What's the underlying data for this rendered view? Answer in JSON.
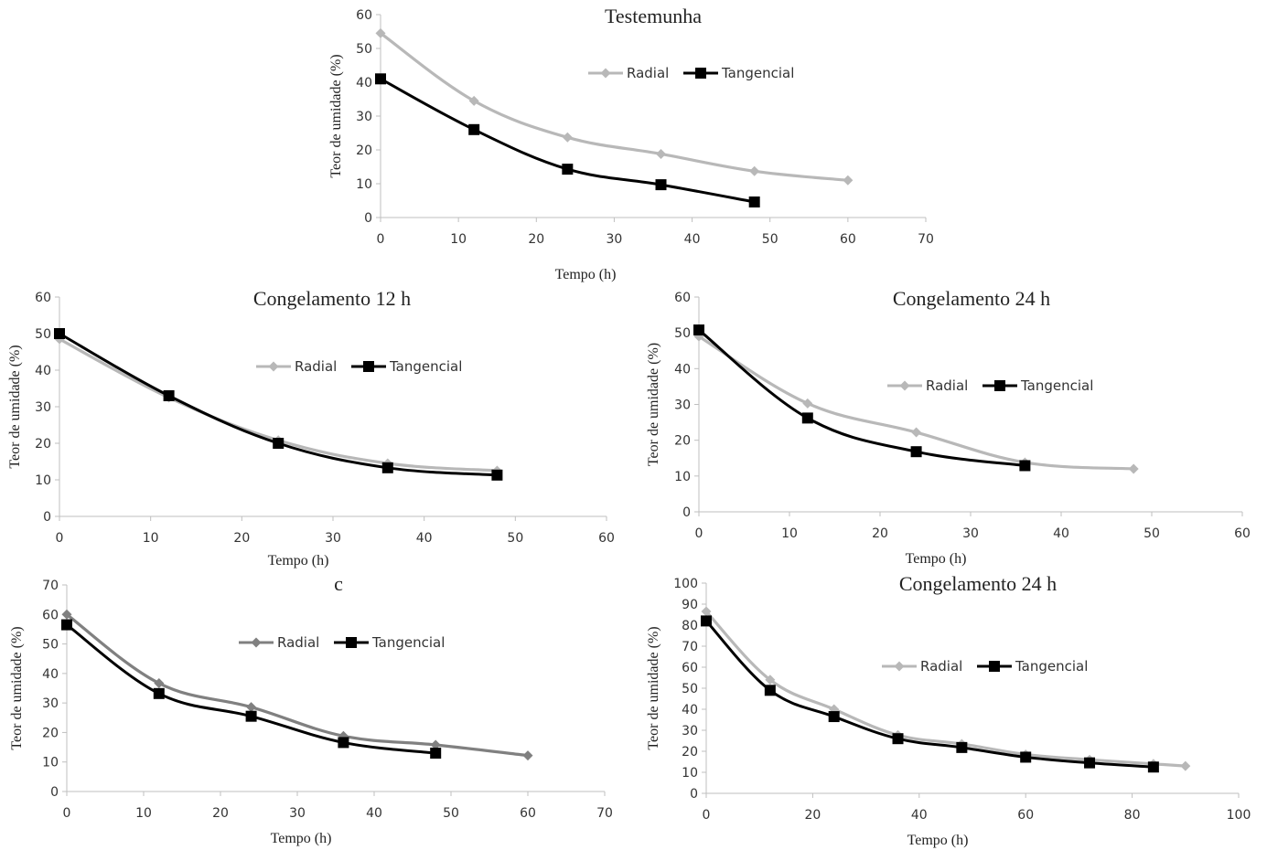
{
  "charts": [
    {
      "type": "line",
      "title": "Testemunha",
      "xlabel": "Tempo (h)",
      "ylabel": "Teor de umidade (%)",
      "xlim": [
        0,
        70
      ],
      "ylim": [
        0,
        60
      ],
      "xticks": [
        0,
        10,
        20,
        30,
        40,
        50,
        60,
        70
      ],
      "yticks": [
        0,
        10,
        20,
        30,
        40,
        50,
        60
      ],
      "legend": "top-right",
      "series": [
        {
          "name": "Radial",
          "color": "#b8b8b8",
          "marker": "diamond",
          "x": [
            0,
            12,
            24,
            36,
            48,
            60
          ],
          "y": [
            54.5,
            34.5,
            23.7,
            18.8,
            13.7,
            11.0
          ]
        },
        {
          "name": "Tangencial",
          "color": "#000000",
          "marker": "square",
          "x": [
            0,
            12,
            24,
            36,
            48
          ],
          "y": [
            41.0,
            26.0,
            14.3,
            9.7,
            4.6
          ]
        }
      ]
    },
    {
      "type": "line",
      "title": "Congelamento 12 h",
      "xlabel": "Tempo (h)",
      "ylabel": "Teor de umidade (%)",
      "xlim": [
        0,
        60
      ],
      "ylim": [
        0,
        60
      ],
      "xticks": [
        0,
        10,
        20,
        30,
        40,
        50,
        60
      ],
      "yticks": [
        0,
        10,
        20,
        30,
        40,
        50,
        60
      ],
      "legend": "top-right",
      "series": [
        {
          "name": "Radial",
          "color": "#b8b8b8",
          "marker": "diamond",
          "x": [
            0,
            12,
            24,
            36,
            48
          ],
          "y": [
            48.5,
            32.5,
            20.8,
            14.5,
            12.5
          ]
        },
        {
          "name": "Tangencial",
          "color": "#000000",
          "marker": "square",
          "x": [
            0,
            12,
            24,
            36,
            48
          ],
          "y": [
            50.0,
            33.0,
            20.0,
            13.3,
            11.3
          ]
        }
      ]
    },
    {
      "type": "line",
      "title": "Congelamento 24 h",
      "xlabel": "Tempo (h)",
      "ylabel": "Teor de umidade (%)",
      "xlim": [
        0,
        60
      ],
      "ylim": [
        0,
        60
      ],
      "xticks": [
        0,
        10,
        20,
        30,
        40,
        50,
        60
      ],
      "yticks": [
        0,
        10,
        20,
        30,
        40,
        50,
        60
      ],
      "legend": "top-right",
      "series": [
        {
          "name": "Radial",
          "color": "#b8b8b8",
          "marker": "diamond",
          "x": [
            0,
            12,
            24,
            36,
            48
          ],
          "y": [
            49.0,
            30.3,
            22.2,
            13.8,
            12.0
          ]
        },
        {
          "name": "Tangencial",
          "color": "#000000",
          "marker": "square",
          "x": [
            0,
            12,
            24,
            36
          ],
          "y": [
            50.8,
            26.2,
            16.8,
            12.9
          ]
        }
      ]
    },
    {
      "type": "line",
      "title": "c",
      "xlabel": "Tempo (h)",
      "ylabel": "Teor de umidade (%)",
      "xlim": [
        0,
        70
      ],
      "ylim": [
        0,
        70
      ],
      "xticks": [
        0,
        10,
        20,
        30,
        40,
        50,
        60,
        70
      ],
      "yticks": [
        0,
        10,
        20,
        30,
        40,
        50,
        60,
        70
      ],
      "legend": "top-right",
      "series": [
        {
          "name": "Radial",
          "color": "#808080",
          "marker": "diamond",
          "x": [
            0,
            12,
            24,
            36,
            48,
            60
          ],
          "y": [
            60.0,
            36.7,
            28.6,
            18.8,
            15.8,
            12.2
          ]
        },
        {
          "name": "Tangencial",
          "color": "#000000",
          "marker": "square",
          "x": [
            0,
            12,
            24,
            36,
            48
          ],
          "y": [
            56.5,
            33.2,
            25.5,
            16.6,
            13.0
          ]
        }
      ]
    },
    {
      "type": "line",
      "title": "Congelamento 24 h",
      "xlabel": "Tempo (h)",
      "ylabel": "Teor de umidade (%)",
      "xlim": [
        0,
        100
      ],
      "ylim": [
        0,
        100
      ],
      "xticks": [
        0,
        20,
        40,
        60,
        80,
        100
      ],
      "yticks": [
        0,
        10,
        20,
        30,
        40,
        50,
        60,
        70,
        80,
        90,
        100
      ],
      "legend": "top-right",
      "series": [
        {
          "name": "Radial",
          "color": "#b8b8b8",
          "marker": "diamond",
          "x": [
            0,
            12,
            24,
            36,
            48,
            60,
            72,
            84,
            90
          ],
          "y": [
            86.5,
            54.0,
            40.0,
            27.7,
            23.5,
            18.5,
            16.0,
            14.0,
            13.0
          ]
        },
        {
          "name": "Tangencial",
          "color": "#000000",
          "marker": "square",
          "x": [
            0,
            12,
            24,
            36,
            48,
            60,
            72,
            84
          ],
          "y": [
            82.0,
            49.0,
            36.5,
            26.0,
            21.8,
            17.2,
            14.5,
            12.5
          ]
        }
      ]
    }
  ]
}
